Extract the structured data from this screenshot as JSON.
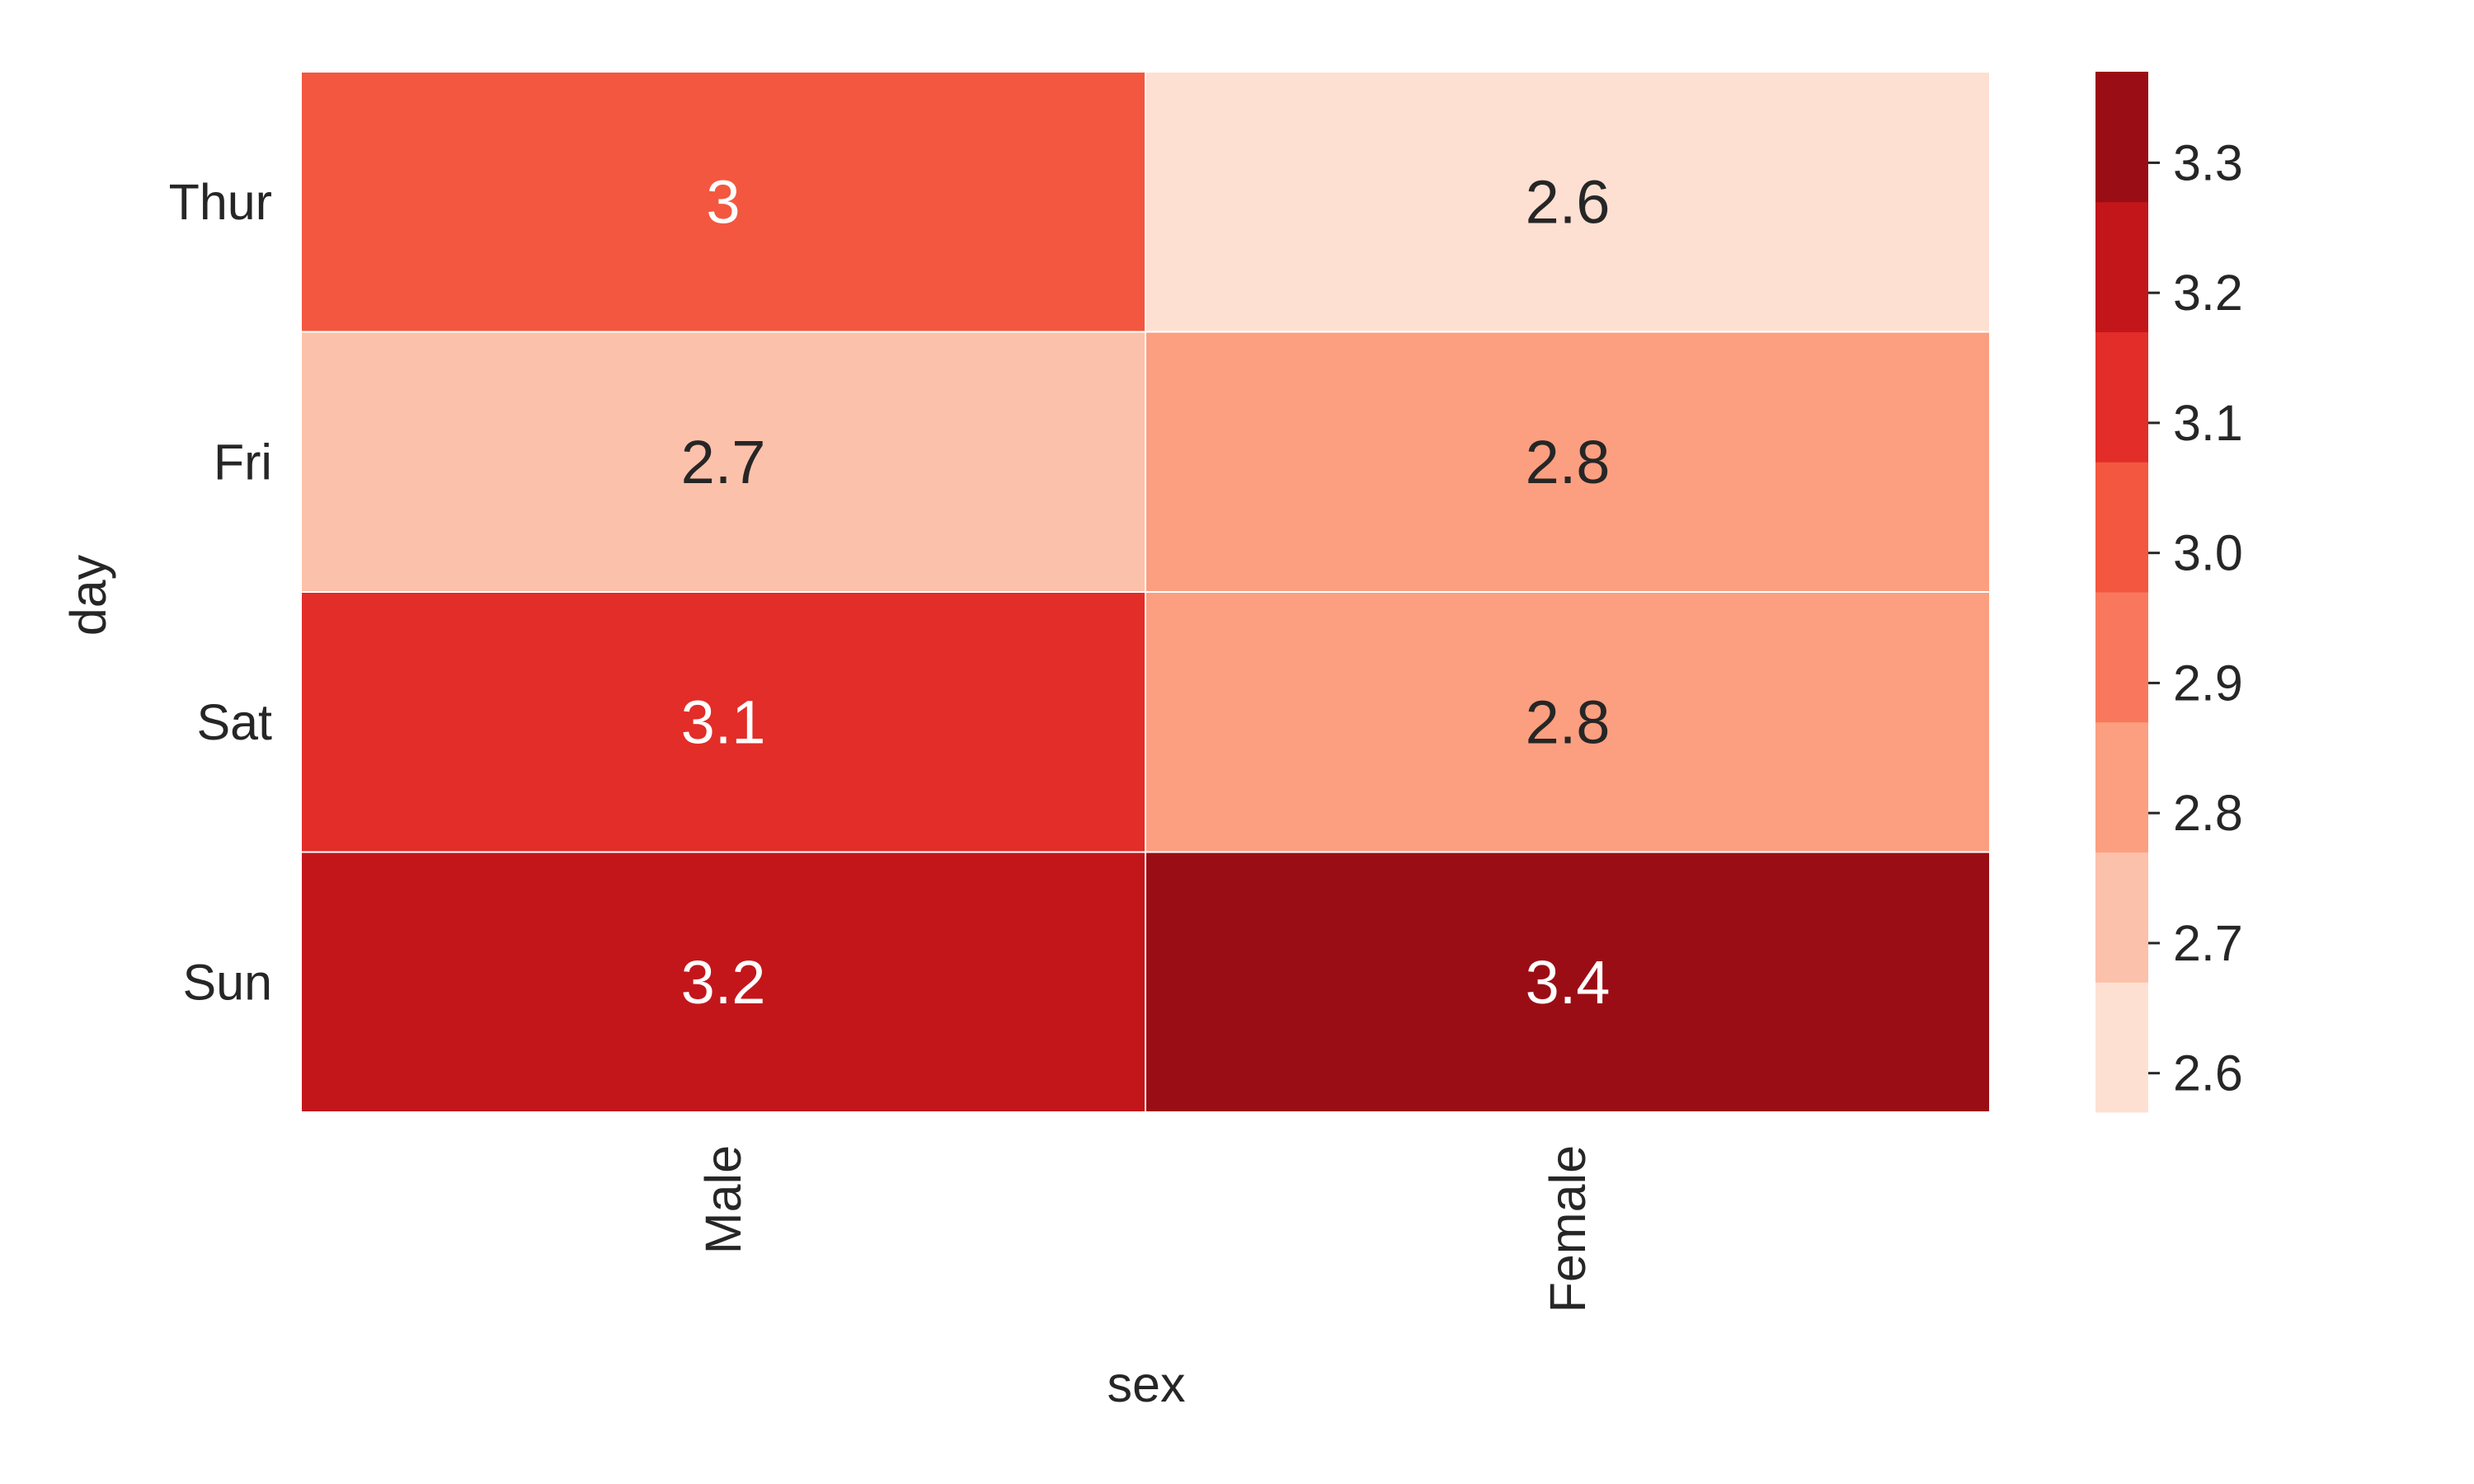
{
  "chart_data": {
    "type": "heatmap",
    "x_categories": [
      "Male",
      "Female"
    ],
    "y_categories": [
      "Thur",
      "Fri",
      "Sat",
      "Sun"
    ],
    "values": [
      [
        3.0,
        2.6
      ],
      [
        2.7,
        2.8
      ],
      [
        3.1,
        2.8
      ],
      [
        3.2,
        3.4
      ]
    ],
    "cell_labels": [
      [
        "3",
        "2.6"
      ],
      [
        "2.7",
        "2.8"
      ],
      [
        "3.1",
        "2.8"
      ],
      [
        "3.2",
        "3.4"
      ]
    ],
    "xlabel": "sex",
    "ylabel": "day",
    "colorbar": {
      "range": [
        2.57,
        3.37
      ],
      "ticks": [
        2.6,
        2.7,
        2.8,
        2.9,
        3.0,
        3.1,
        3.2,
        3.3
      ],
      "tick_labels": [
        "2.6",
        "2.7",
        "2.8",
        "2.9",
        "3.0",
        "3.1",
        "3.2",
        "3.3"
      ],
      "colors": [
        "#fee0d2",
        "#fcc1aa",
        "#fb9f80",
        "#f9785d",
        "#f3573f",
        "#e22d28",
        "#c3161b",
        "#9b0d14"
      ]
    },
    "cell_text_colors": {
      "dark": "#262626",
      "light": "#ffffff"
    },
    "grid_color": "#ffffff"
  }
}
